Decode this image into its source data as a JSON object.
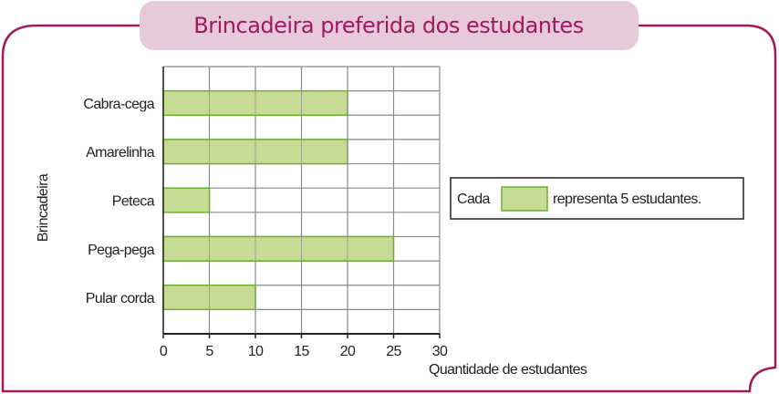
{
  "chart_data": {
    "type": "bar",
    "orientation": "horizontal",
    "title": "Brincadeira preferida dos estudantes",
    "xlabel": "Quantidade de estudantes",
    "ylabel": "Brincadeira",
    "categories": [
      "Cabra-cega",
      "Amarelinha",
      "Peteca",
      "Pega-pega",
      "Pular corda"
    ],
    "values": [
      20,
      20,
      5,
      25,
      10
    ],
    "xlim": [
      0,
      30
    ],
    "xticks": [
      "0",
      "5",
      "10",
      "15",
      "20",
      "25",
      "30"
    ],
    "grid": true,
    "legend": {
      "before": "Cada",
      "after": "representa 5 estudantes.",
      "placement": "right"
    },
    "colors": {
      "bar": "#c6dc94",
      "bar_border": "#6ab42d",
      "frame": "#a3195b",
      "title_bg": "#e6cad9",
      "title_text": "#a3175f",
      "grid": "#8a8a8a"
    }
  }
}
